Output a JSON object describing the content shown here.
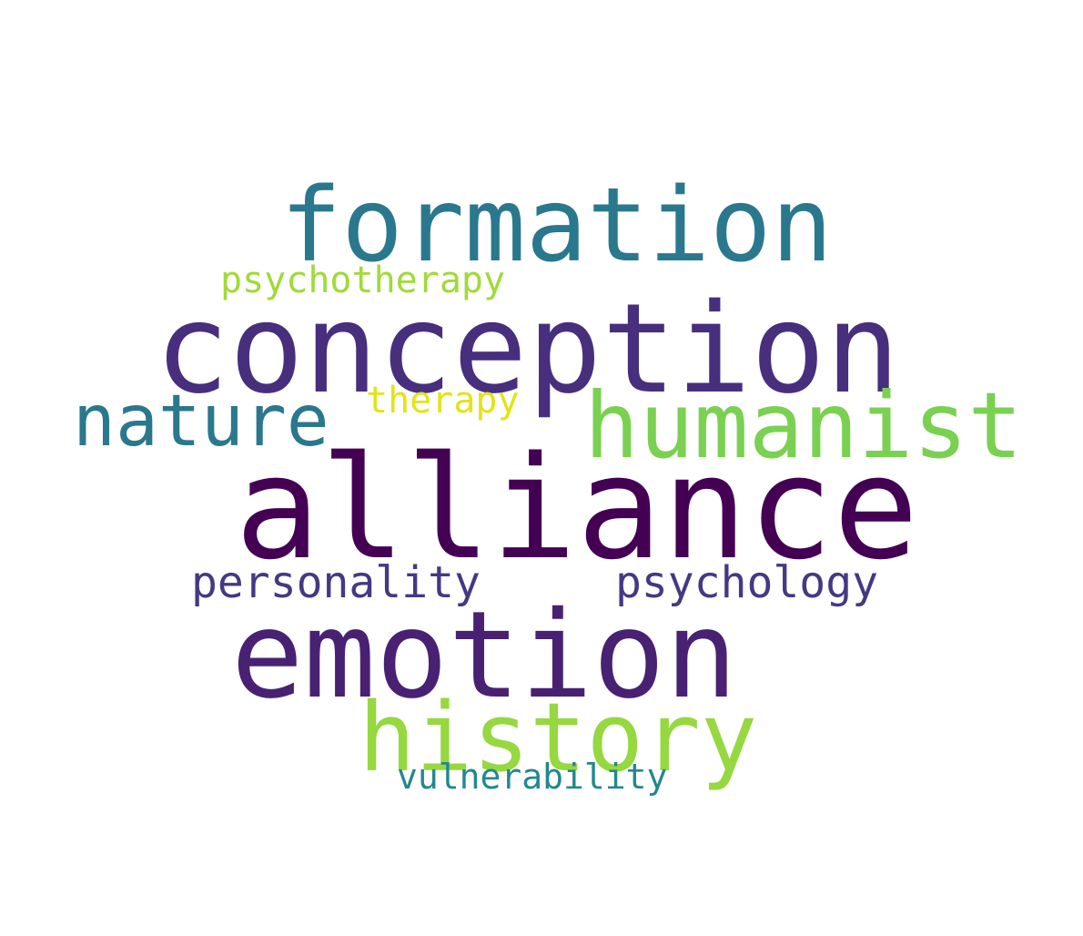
{
  "words": [
    {
      "id": "formation",
      "text": "formation",
      "color": "#2a788e"
    },
    {
      "id": "psychotherapy",
      "text": "psychotherapy",
      "color": "#a0da39"
    },
    {
      "id": "conception",
      "text": "conception",
      "color": "#472f7d"
    },
    {
      "id": "nature",
      "text": "nature",
      "color": "#2a788e"
    },
    {
      "id": "therapy",
      "text": "therapy",
      "color": "#e2e418"
    },
    {
      "id": "humanist",
      "text": "humanist",
      "color": "#7ad151"
    },
    {
      "id": "alliance",
      "text": "alliance",
      "color": "#440154"
    },
    {
      "id": "personality",
      "text": "personality",
      "color": "#443983"
    },
    {
      "id": "psychology",
      "text": "psychology",
      "color": "#443983"
    },
    {
      "id": "emotion",
      "text": "emotion",
      "color": "#482173"
    },
    {
      "id": "history",
      "text": "history",
      "color": "#95d840"
    },
    {
      "id": "vulnerability",
      "text": "vulnerability",
      "color": "#23888e"
    }
  ]
}
